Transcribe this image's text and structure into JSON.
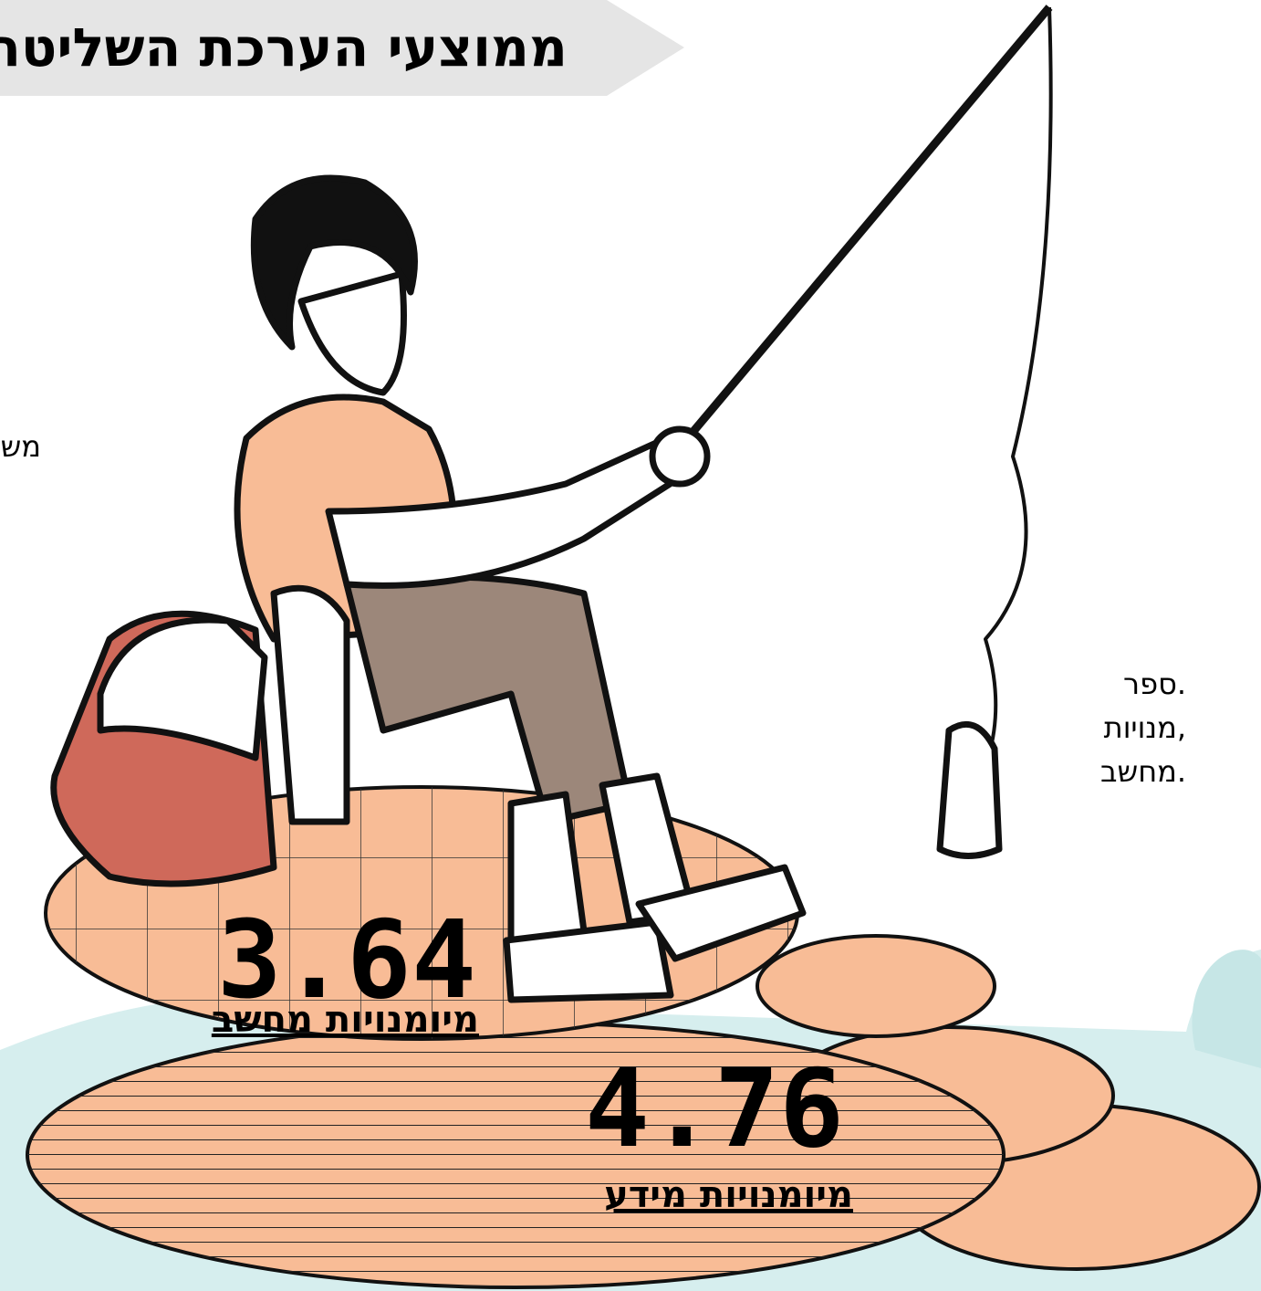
{
  "header": {
    "title": "ממוצעי הערכת השליטה ש"
  },
  "left_text": "מש",
  "right_text": [
    "ספר.",
    "מנויות,",
    "מחשב."
  ],
  "stats": [
    {
      "value": 3.64,
      "label": "מיומנויות מחשב"
    },
    {
      "value": 4.76,
      "label": "מיומנויות מידע"
    }
  ]
}
